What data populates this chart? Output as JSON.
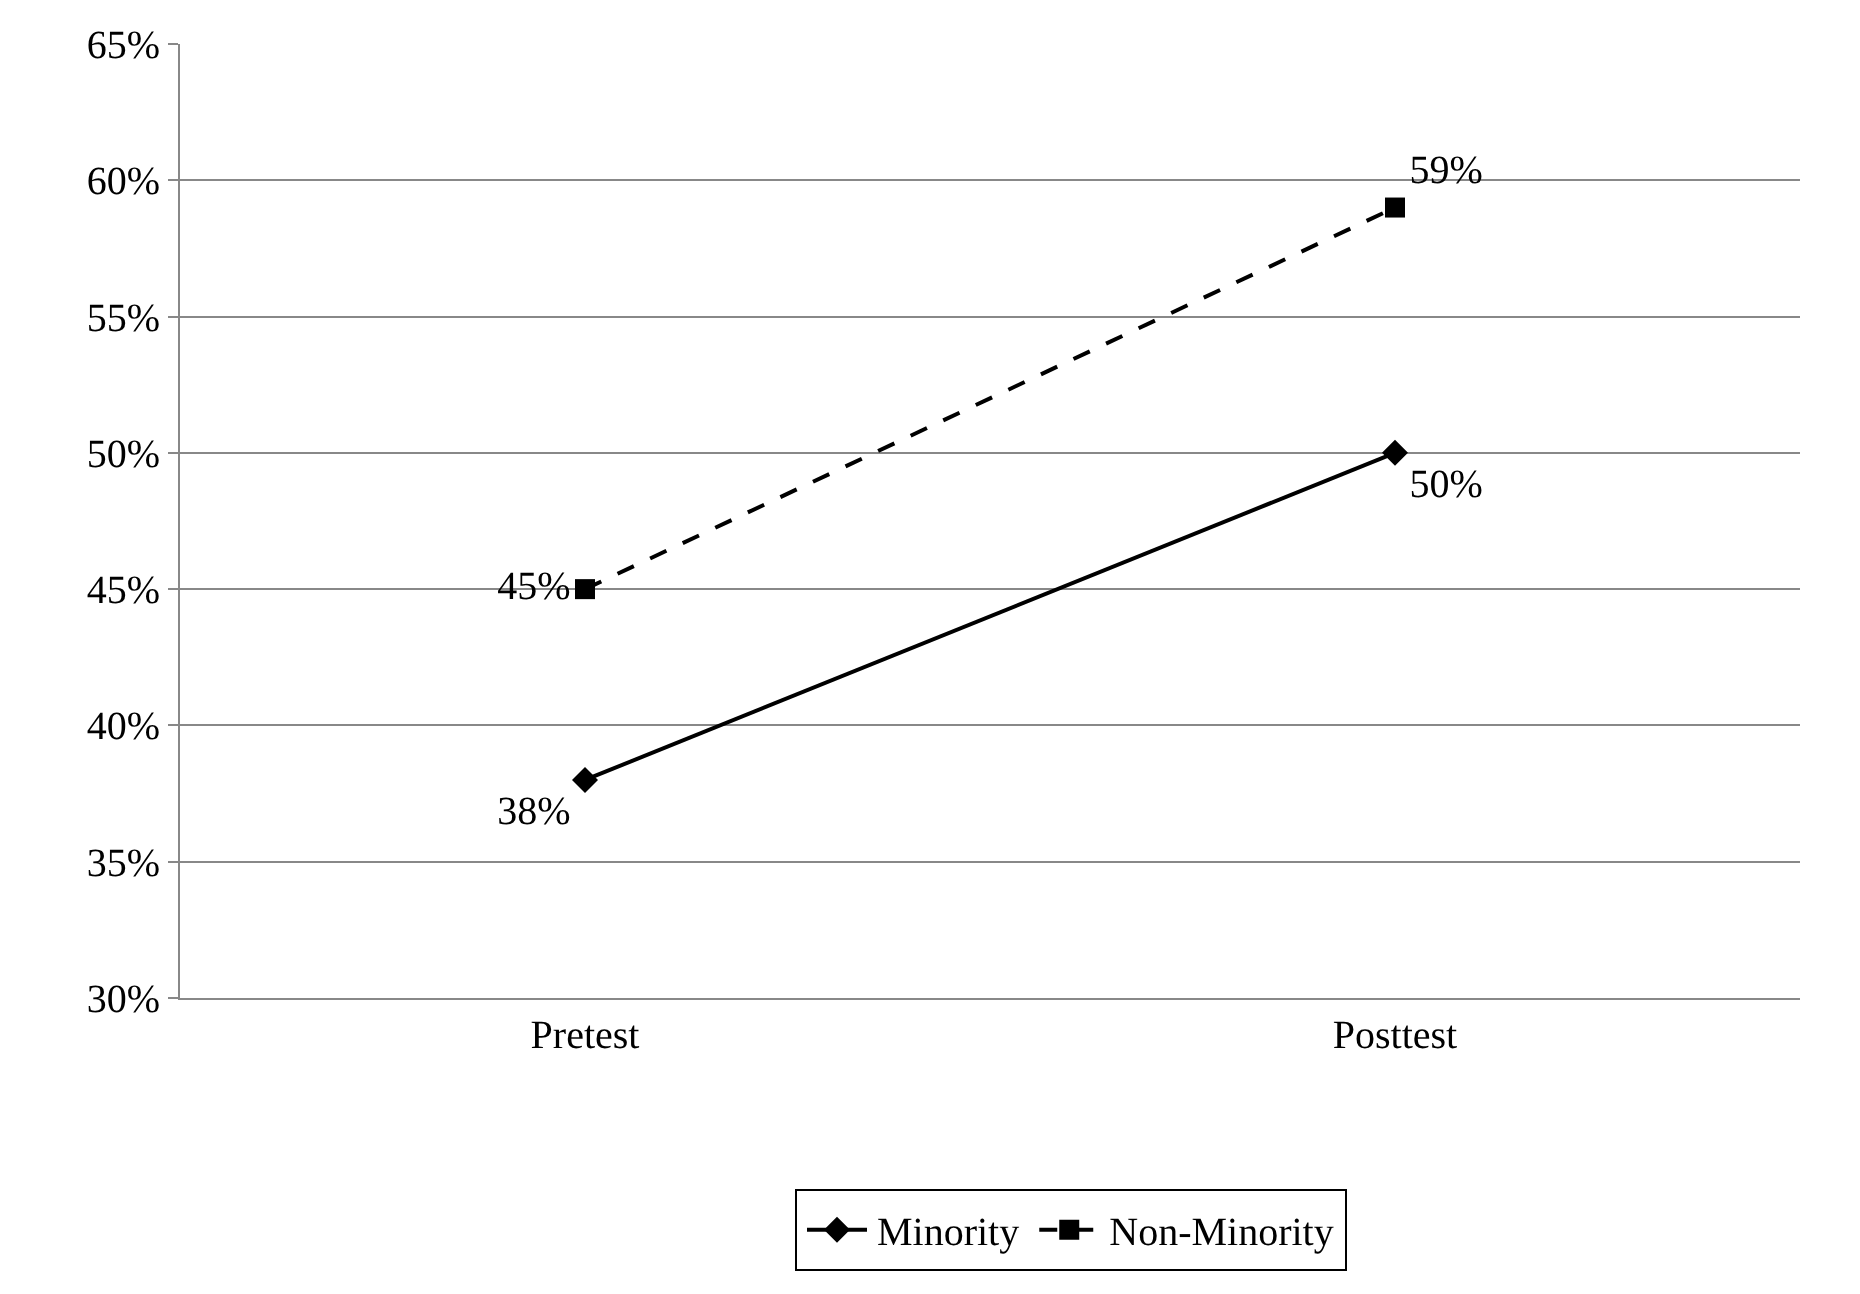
{
  "chart_data": {
    "type": "line",
    "categories": [
      "Pretest",
      "Posttest"
    ],
    "series": [
      {
        "name": "Minority",
        "color": "#000000",
        "values": [
          38,
          50
        ],
        "value_labels": [
          "38%",
          "50%"
        ],
        "marker": "diamond",
        "line_style": "solid"
      },
      {
        "name": "Non-Minority",
        "color": "#000000",
        "values": [
          45,
          59
        ],
        "value_labels": [
          "45%",
          "59%"
        ],
        "marker": "square",
        "line_style": "dashed"
      }
    ],
    "ylim": [
      30,
      65
    ],
    "yticks": [
      {
        "value": 30,
        "label": "30%"
      },
      {
        "value": 35,
        "label": "35%"
      },
      {
        "value": 40,
        "label": "40%"
      },
      {
        "value": 45,
        "label": "45%"
      },
      {
        "value": 50,
        "label": "50%"
      },
      {
        "value": 55,
        "label": "55%"
      },
      {
        "value": 60,
        "label": "60%"
      },
      {
        "value": 65,
        "label": "65%"
      }
    ],
    "grid": "y",
    "legend": "bottom"
  }
}
